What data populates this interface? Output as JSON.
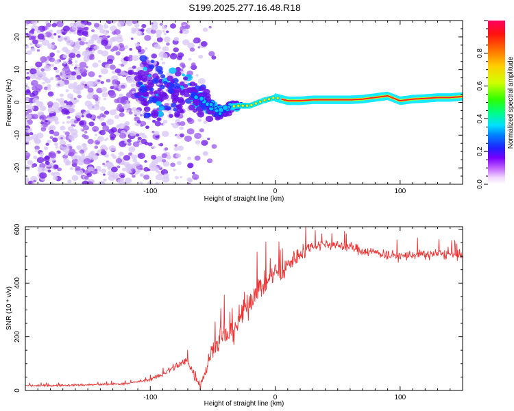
{
  "title": "S199.2025.277.16.48.R18",
  "colors": {
    "snr_line": "#f03030",
    "axis": "#000000",
    "scatter_low": "#d8c6f5",
    "scatter_mid": "#9a55ee",
    "scatter_high": "#6a12e6"
  },
  "chart_data": [
    {
      "type": "heatmap",
      "title": "S199.2025.277.16.48.R18",
      "xlabel": "Height of straight line (km)",
      "ylabel": "Frequency (Hz)",
      "xlim": [
        -200,
        150
      ],
      "ylim": [
        -25,
        25
      ],
      "xticks": [
        -100,
        0,
        100
      ],
      "xtick_labels": [
        "-100",
        "0",
        "100"
      ],
      "yticks": [
        -20,
        -10,
        0,
        10,
        20
      ],
      "ytick_labels": [
        "-20",
        "-10",
        "0",
        "10",
        "20"
      ],
      "colorbar": {
        "label": "Normalized spectral amplitude",
        "range": [
          0,
          1
        ],
        "ticks": [
          0.0,
          0.2,
          0.4,
          0.6,
          0.8
        ],
        "tick_labels": [
          "0.0",
          "0.2",
          "0.4",
          "0.6",
          "0.8"
        ]
      },
      "signal_track": {
        "description_free": true,
        "x": [
          -75,
          -65,
          -55,
          -45,
          -38,
          -30,
          -20,
          -10,
          0,
          10,
          20,
          30,
          40,
          50,
          60,
          70,
          80,
          90,
          100,
          110,
          120,
          130,
          140,
          150
        ],
        "freq": [
          3,
          2,
          0,
          -3,
          -1.5,
          -1,
          -1,
          0.5,
          1.5,
          0.5,
          0.5,
          0.8,
          0.8,
          0.8,
          0.8,
          1,
          1.5,
          2,
          0.5,
          1,
          1.2,
          1.5,
          1.5,
          1.8
        ],
        "amplitude": [
          0.3,
          0.35,
          0.4,
          0.4,
          0.45,
          0.5,
          0.55,
          0.65,
          0.8,
          0.85,
          0.9,
          0.95,
          0.95,
          0.95,
          0.95,
          0.92,
          0.9,
          0.85,
          0.9,
          0.92,
          0.95,
          0.95,
          0.95,
          0.95
        ]
      }
    },
    {
      "type": "line",
      "xlabel": "Height of straight line (km)",
      "ylabel": "SNR (10 * v/v)",
      "xlim": [
        -200,
        150
      ],
      "ylim": [
        0,
        610
      ],
      "xticks": [
        -100,
        0,
        100
      ],
      "xtick_labels": [
        "-100",
        "0",
        "100"
      ],
      "yticks": [
        0,
        200,
        400,
        600
      ],
      "ytick_labels": [
        "0",
        "200",
        "400",
        "600"
      ],
      "series": [
        {
          "name": "SNR",
          "x": [
            -200,
            -180,
            -160,
            -140,
            -120,
            -100,
            -90,
            -80,
            -70,
            -65,
            -60,
            -55,
            -50,
            -45,
            -40,
            -35,
            -30,
            -25,
            -20,
            -15,
            -10,
            -5,
            0,
            5,
            10,
            15,
            20,
            25,
            30,
            40,
            50,
            60,
            70,
            80,
            90,
            100,
            110,
            120,
            130,
            140,
            150
          ],
          "y": [
            18,
            18,
            20,
            22,
            25,
            40,
            60,
            90,
            110,
            60,
            25,
            80,
            160,
            180,
            200,
            230,
            250,
            300,
            330,
            380,
            390,
            410,
            450,
            420,
            470,
            490,
            510,
            530,
            540,
            545,
            540,
            535,
            520,
            515,
            505,
            500,
            505,
            505,
            510,
            505,
            500
          ]
        }
      ]
    }
  ]
}
